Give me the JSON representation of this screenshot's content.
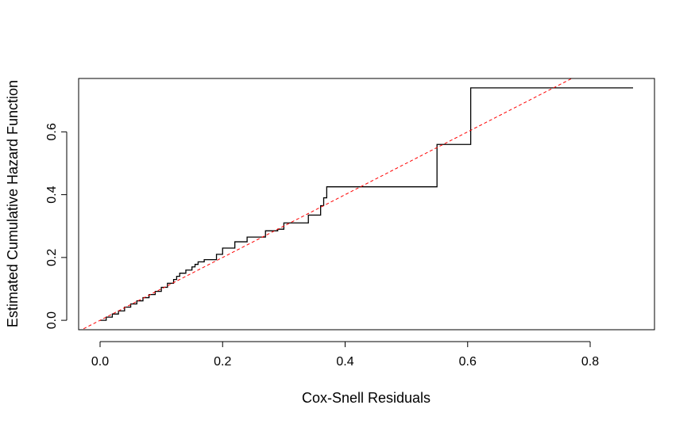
{
  "chart_data": {
    "type": "line",
    "title": "",
    "xlabel": "Cox-Snell Residuals",
    "ylabel": "Estimated Cumulative Hazard Function",
    "xlim": [
      -0.035,
      0.905
    ],
    "ylim": [
      -0.03,
      0.77
    ],
    "x_ticks": [
      0.0,
      0.2,
      0.4,
      0.6,
      0.8
    ],
    "x_tick_labels": [
      "0.0",
      "0.2",
      "0.4",
      "0.6",
      "0.8"
    ],
    "y_ticks": [
      0.0,
      0.2,
      0.4,
      0.6
    ],
    "y_tick_labels": [
      "0.0",
      "0.2",
      "0.4",
      "0.6"
    ],
    "grid": false,
    "series": [
      {
        "style": "step",
        "color": "#000000",
        "x": [
          0.0,
          0.01,
          0.02,
          0.03,
          0.04,
          0.05,
          0.06,
          0.07,
          0.08,
          0.09,
          0.1,
          0.11,
          0.12,
          0.125,
          0.13,
          0.14,
          0.15,
          0.155,
          0.16,
          0.17,
          0.19,
          0.2,
          0.22,
          0.24,
          0.27,
          0.29,
          0.3,
          0.34,
          0.36,
          0.365,
          0.37,
          0.55,
          0.605,
          0.87
        ],
        "y": [
          0.0,
          0.01,
          0.02,
          0.03,
          0.042,
          0.052,
          0.062,
          0.072,
          0.082,
          0.092,
          0.105,
          0.118,
          0.13,
          0.14,
          0.15,
          0.16,
          0.17,
          0.178,
          0.186,
          0.193,
          0.21,
          0.23,
          0.25,
          0.265,
          0.285,
          0.29,
          0.31,
          0.335,
          0.365,
          0.39,
          0.425,
          0.56,
          0.74,
          0.74
        ]
      },
      {
        "style": "dashed",
        "color": "#ff0000",
        "x": [
          -0.035,
          0.905
        ],
        "y": [
          -0.035,
          0.905
        ]
      }
    ]
  }
}
